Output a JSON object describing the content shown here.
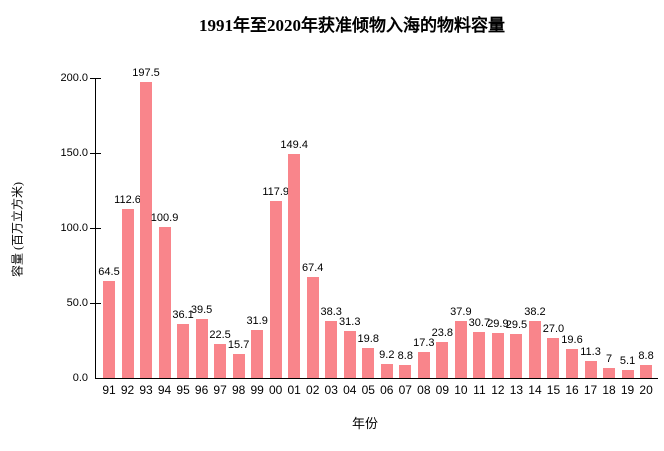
{
  "chart_data": {
    "type": "bar",
    "title": "1991年至2020年获准倾物入海的物料容量",
    "xlabel": "年份",
    "ylabel": "容量 (百万立方米)",
    "categories": [
      "91",
      "92",
      "93",
      "94",
      "95",
      "96",
      "97",
      "98",
      "99",
      "00",
      "01",
      "02",
      "03",
      "04",
      "05",
      "06",
      "07",
      "08",
      "09",
      "10",
      "11",
      "12",
      "13",
      "14",
      "15",
      "16",
      "17",
      "18",
      "19",
      "20"
    ],
    "values": [
      64.5,
      112.6,
      197.5,
      100.9,
      36.1,
      39.5,
      22.5,
      15.7,
      31.9,
      117.9,
      149.4,
      67.4,
      38.3,
      31.3,
      19.8,
      9.2,
      8.8,
      17.3,
      23.8,
      37.9,
      30.7,
      29.9,
      29.5,
      38.2,
      27.0,
      19.6,
      11.3,
      7,
      5.1,
      8.8
    ],
    "bar_labels": [
      "64.5",
      "112.6",
      "197.5",
      "100.9",
      "36.1",
      "39.5",
      "22.5",
      "15.7",
      "31.9",
      "117.9",
      "149.4",
      "67.4",
      "38.3",
      "31.3",
      "19.8",
      "9.2",
      "8.8",
      "17.3",
      "23.8",
      "37.9",
      "30.7",
      "29.9",
      "29.5",
      "38.2",
      "27.0",
      "19.6",
      "11.3",
      "7",
      "5.1",
      "8.8"
    ],
    "ylim": [
      0,
      200
    ],
    "yticks": [
      {
        "value": 0,
        "label": "0.0"
      },
      {
        "value": 50,
        "label": "50.0"
      },
      {
        "value": 100,
        "label": "100.0"
      },
      {
        "value": 150,
        "label": "150.0"
      },
      {
        "value": 200,
        "label": "200.0"
      }
    ],
    "grid": "off",
    "legend": "none",
    "bar_color": "#F9858B",
    "axis_color": "#000000",
    "text_color": "#000000",
    "background_color": "#FFFFFF"
  }
}
